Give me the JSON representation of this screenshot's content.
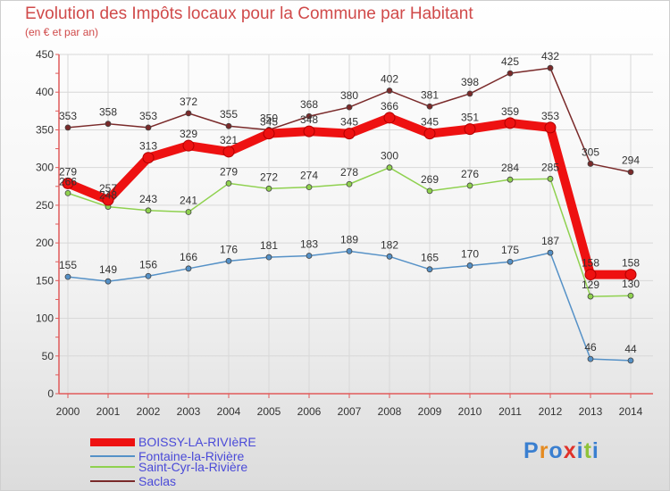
{
  "title": "Evolution des Impôts locaux pour la Commune par Habitant",
  "subtitle": "(en € et par an)",
  "logo_text": "Proxiti",
  "colors": {
    "title": "#d04a4a",
    "axis": "#e05a5a",
    "grid": "#d8d8d8",
    "legend_text": "#4a4ad8"
  },
  "chart_data": {
    "type": "line",
    "title": "Evolution des Impôts locaux pour la Commune par Habitant",
    "subtitle": "(en € et par an)",
    "xlabel": "",
    "ylabel": "",
    "ylim": [
      0,
      450
    ],
    "yticks": [
      0,
      50,
      100,
      150,
      200,
      250,
      300,
      350,
      400,
      450
    ],
    "grid": true,
    "legend_position": "bottom-left",
    "x": [
      "2000",
      "2001",
      "2002",
      "2003",
      "2004",
      "2005",
      "2006",
      "2007",
      "2008",
      "2009",
      "2010",
      "2011",
      "2012",
      "2013",
      "2014"
    ],
    "series": [
      {
        "name": "BOISSY-LA-RIVIèRE",
        "color": "#ee1111",
        "values": [
          279,
          257,
          313,
          329,
          321,
          345,
          348,
          345,
          366,
          345,
          351,
          359,
          353,
          158,
          158
        ]
      },
      {
        "name": "Fontaine-la-Rivière",
        "color": "#5591c7",
        "values": [
          155,
          149,
          156,
          166,
          176,
          181,
          183,
          189,
          182,
          165,
          170,
          175,
          187,
          46,
          44
        ]
      },
      {
        "name": "Saint-Cyr-la-Rivière",
        "color": "#8fd14f",
        "values": [
          266,
          248,
          243,
          241,
          279,
          272,
          274,
          278,
          300,
          269,
          276,
          284,
          285,
          129,
          130
        ]
      },
      {
        "name": "Saclas",
        "color": "#7a2a2a",
        "values": [
          353,
          358,
          353,
          372,
          355,
          350,
          368,
          380,
          402,
          381,
          398,
          425,
          432,
          305,
          294
        ]
      }
    ]
  }
}
